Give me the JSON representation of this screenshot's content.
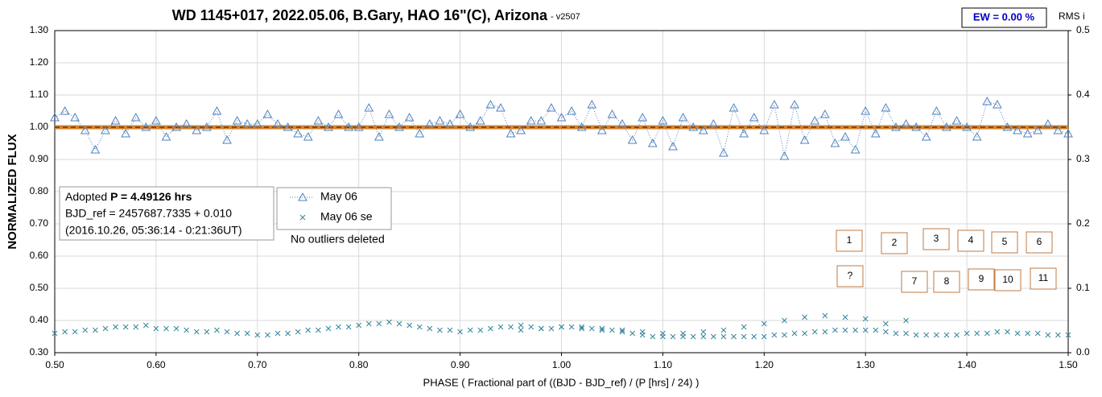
{
  "chart_data": {
    "type": "scatter",
    "title": "WD 1145+017, 2022.05.06, B.Gary, HAO 16\"(C), Arizona",
    "subtitle": "- v2507",
    "ew_label": "EW = 0.00 %",
    "x_label": "PHASE ( Fractional part of ((BJD - BJD_ref) / (P [hrs] / 24) )",
    "y_label": "NORMALIZED FLUX",
    "y2_label": "RMS i",
    "note": "No outliers deleted",
    "info": {
      "prefix": "Adopted",
      "bold": "P = 4.49126 hrs",
      "lines": [
        "BJD_ref = 2457687.7335 + 0.010",
        "(2016.10.26, 05:36:14 - 0:21:36UT)"
      ]
    },
    "annotations": [
      "1",
      "2",
      "3",
      "4",
      "5",
      "6",
      "?",
      "7",
      "8",
      "9",
      "10",
      "11"
    ],
    "xlim": [
      0.5,
      1.5
    ],
    "xticks": [
      {
        "value": 0.5,
        "label": "0.50"
      },
      {
        "value": 0.6,
        "label": "0.60"
      },
      {
        "value": 0.7,
        "label": "0.70"
      },
      {
        "value": 0.8,
        "label": "0.80"
      },
      {
        "value": 0.9,
        "label": "0.90"
      },
      {
        "value": 1.0,
        "label": "1.00"
      },
      {
        "value": 1.1,
        "label": "1.10"
      },
      {
        "value": 1.2,
        "label": "1.20"
      },
      {
        "value": 1.3,
        "label": "1.30"
      },
      {
        "value": 1.4,
        "label": "1.40"
      },
      {
        "value": 1.5,
        "label": "1.50"
      }
    ],
    "ylim": [
      0.3,
      1.3
    ],
    "yticks": [
      {
        "value": 0.3,
        "label": "0.30"
      },
      {
        "value": 0.4,
        "label": "0.40"
      },
      {
        "value": 0.5,
        "label": "0.50"
      },
      {
        "value": 0.6,
        "label": "0.60"
      },
      {
        "value": 0.7,
        "label": "0.70"
      },
      {
        "value": 0.8,
        "label": "0.80"
      },
      {
        "value": 0.9,
        "label": "0.90"
      },
      {
        "value": 1.0,
        "label": "1.00"
      },
      {
        "value": 1.1,
        "label": "1.10"
      },
      {
        "value": 1.2,
        "label": "1.20"
      },
      {
        "value": 1.3,
        "label": "1.30"
      }
    ],
    "y2lim": [
      0,
      0.5
    ],
    "y2ticks": [
      {
        "value": 0,
        "label": "0.0"
      },
      {
        "value": 0.1,
        "label": "0.1"
      },
      {
        "value": 0.2,
        "label": "0.2"
      },
      {
        "value": 0.3,
        "label": "0.3"
      },
      {
        "value": 0.4,
        "label": "0.4"
      },
      {
        "value": 0.5,
        "label": "0.5"
      }
    ],
    "grid": true,
    "reference_line": {
      "value": 1.0,
      "color": "#d9822b"
    },
    "series": [
      {
        "name": "May 06",
        "color": "#4f81bd",
        "marker": "triangle",
        "line": true,
        "x": [
          0.5,
          0.51,
          0.52,
          0.53,
          0.54,
          0.55,
          0.56,
          0.57,
          0.58,
          0.59,
          0.6,
          0.61,
          0.62,
          0.63,
          0.64,
          0.65,
          0.66,
          0.67,
          0.68,
          0.69,
          0.7,
          0.71,
          0.72,
          0.73,
          0.74,
          0.75,
          0.76,
          0.77,
          0.78,
          0.79,
          0.8,
          0.81,
          0.82,
          0.83,
          0.84,
          0.85,
          0.86,
          0.87,
          0.88,
          0.89,
          0.9,
          0.91,
          0.92,
          0.93,
          0.94,
          0.95,
          0.96,
          0.97,
          0.98,
          0.99,
          1.0,
          1.01,
          1.02,
          1.03,
          1.04,
          1.05,
          1.06,
          1.07,
          1.08,
          1.09,
          1.1,
          1.11,
          1.12,
          1.13,
          1.14,
          1.15,
          1.16,
          1.17,
          1.18,
          1.19,
          1.2,
          1.21,
          1.22,
          1.23,
          1.24,
          1.25,
          1.26,
          1.27,
          1.28,
          1.29,
          1.3,
          1.31,
          1.32,
          1.33,
          1.34,
          1.35,
          1.36,
          1.37,
          1.38,
          1.39,
          1.4,
          1.41,
          1.42,
          1.43,
          1.44,
          1.45,
          1.46,
          1.47,
          1.48,
          1.49,
          1.5
        ],
        "values": [
          1.03,
          1.05,
          1.03,
          0.99,
          0.93,
          0.99,
          1.02,
          0.98,
          1.03,
          1.0,
          1.02,
          0.97,
          1.0,
          1.01,
          0.99,
          1.0,
          1.05,
          0.96,
          1.02,
          1.01,
          1.01,
          1.04,
          1.01,
          1.0,
          0.98,
          0.97,
          1.02,
          1.0,
          1.04,
          1.0,
          1.0,
          1.06,
          0.97,
          1.04,
          1.0,
          1.03,
          0.98,
          1.01,
          1.02,
          1.01,
          1.04,
          1.0,
          1.02,
          1.07,
          1.06,
          0.98,
          0.99,
          1.02,
          1.02,
          1.06,
          1.03,
          1.05,
          1.0,
          1.07,
          0.99,
          1.04,
          1.01,
          0.96,
          1.03,
          0.95,
          1.02,
          0.94,
          1.03,
          1.0,
          0.99,
          1.01,
          0.92,
          1.06,
          0.98,
          1.03,
          0.99,
          1.07,
          0.91,
          1.07,
          0.96,
          1.02,
          1.04,
          0.95,
          0.97,
          0.93,
          1.05,
          0.98,
          1.06,
          1.0,
          1.01,
          1.0,
          0.97,
          1.05,
          1.0,
          1.02,
          1.0,
          0.97,
          1.08,
          1.07,
          1.0,
          0.99,
          0.98,
          0.99,
          1.01,
          0.99,
          0.98
        ]
      },
      {
        "name": "May 06 se",
        "color": "#31859c",
        "marker": "x",
        "line": false,
        "x": [
          0.5,
          0.51,
          0.52,
          0.53,
          0.54,
          0.55,
          0.56,
          0.57,
          0.58,
          0.59,
          0.6,
          0.61,
          0.62,
          0.63,
          0.64,
          0.65,
          0.66,
          0.67,
          0.68,
          0.69,
          0.7,
          0.71,
          0.72,
          0.73,
          0.74,
          0.75,
          0.76,
          0.77,
          0.78,
          0.79,
          0.8,
          0.81,
          0.82,
          0.83,
          0.84,
          0.85,
          0.86,
          0.87,
          0.88,
          0.89,
          0.9,
          0.91,
          0.92,
          0.93,
          0.94,
          0.95,
          0.96,
          0.97,
          0.98,
          0.99,
          1.0,
          1.01,
          1.02,
          1.03,
          1.04,
          1.05,
          1.06,
          1.07,
          1.08,
          1.09,
          1.1,
          1.11,
          1.12,
          1.13,
          1.14,
          1.15,
          1.16,
          1.17,
          1.18,
          1.19,
          1.2,
          1.21,
          1.22,
          1.23,
          1.24,
          1.25,
          1.26,
          1.27,
          1.28,
          1.29,
          1.3,
          1.31,
          1.32,
          1.33,
          1.34,
          1.35,
          1.36,
          1.37,
          1.38,
          1.39,
          1.4,
          1.41,
          1.42,
          1.43,
          1.44,
          1.45,
          1.46,
          1.47,
          1.48,
          1.49,
          1.5,
          0.96,
          0.98,
          1.0,
          1.02,
          1.04,
          1.06,
          1.08,
          1.1,
          1.12,
          1.14,
          1.16,
          1.18,
          1.2,
          1.22,
          1.24,
          1.26,
          1.28,
          1.3,
          1.32,
          1.34
        ],
        "values": [
          0.36,
          0.365,
          0.365,
          0.37,
          0.37,
          0.375,
          0.38,
          0.38,
          0.38,
          0.385,
          0.375,
          0.375,
          0.375,
          0.37,
          0.365,
          0.365,
          0.37,
          0.365,
          0.36,
          0.36,
          0.355,
          0.355,
          0.36,
          0.36,
          0.365,
          0.37,
          0.37,
          0.375,
          0.38,
          0.38,
          0.385,
          0.39,
          0.39,
          0.395,
          0.39,
          0.385,
          0.38,
          0.375,
          0.37,
          0.37,
          0.365,
          0.37,
          0.37,
          0.375,
          0.38,
          0.38,
          0.385,
          0.38,
          0.375,
          0.375,
          0.38,
          0.38,
          0.375,
          0.375,
          0.37,
          0.37,
          0.365,
          0.36,
          0.355,
          0.35,
          0.35,
          0.35,
          0.35,
          0.35,
          0.35,
          0.35,
          0.35,
          0.35,
          0.35,
          0.35,
          0.35,
          0.355,
          0.355,
          0.36,
          0.36,
          0.365,
          0.365,
          0.37,
          0.37,
          0.37,
          0.37,
          0.37,
          0.365,
          0.36,
          0.36,
          0.355,
          0.355,
          0.355,
          0.355,
          0.355,
          0.36,
          0.36,
          0.36,
          0.365,
          0.365,
          0.36,
          0.36,
          0.36,
          0.355,
          0.355,
          0.355,
          0.37,
          0.375,
          0.38,
          0.38,
          0.375,
          0.37,
          0.365,
          0.36,
          0.36,
          0.365,
          0.37,
          0.38,
          0.39,
          0.4,
          0.41,
          0.415,
          0.41,
          0.405,
          0.39,
          0.4
        ]
      }
    ]
  }
}
